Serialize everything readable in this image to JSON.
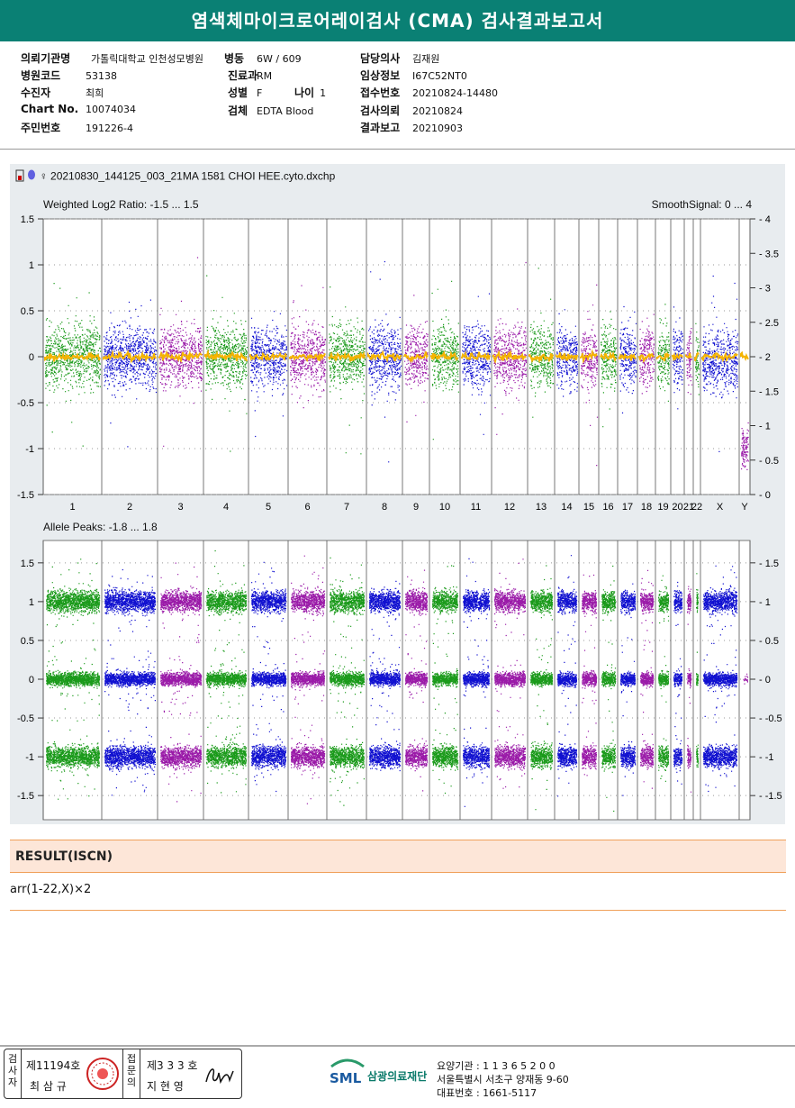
{
  "report": {
    "title": "염색체마이크로어레이검사 (CMA) 검사결과보고서"
  },
  "patient_info": {
    "col1": [
      {
        "label": "의뢰기관명",
        "value": "가톨릭대학교 인천성모병원"
      },
      {
        "label": "병원코드",
        "value": "53138"
      },
      {
        "label": "수진자",
        "value": "최희"
      },
      {
        "label": "Chart No.",
        "value": "10074034"
      },
      {
        "label": "주민번호",
        "value": "191226-4"
      }
    ],
    "col2": [
      {
        "label": "병동",
        "value": "6W / 609"
      },
      {
        "label": "진료과",
        "value": "RM"
      },
      {
        "label": "성별",
        "value": "F"
      },
      {
        "label": "검체",
        "value": "EDTA Blood"
      }
    ],
    "age": {
      "label": "나이",
      "value": "1"
    },
    "col3": [
      {
        "label": "담당의사",
        "value": "김재원"
      },
      {
        "label": "임상정보",
        "value": "I67C52NT0"
      },
      {
        "label": "접수번호",
        "value": "20210824-14480"
      },
      {
        "label": "검사의뢰",
        "value": "20210824"
      },
      {
        "label": "결과보고",
        "value": "20210903"
      }
    ]
  },
  "plot": {
    "filename": "20210830_144125_003_21MA 1581 CHOI HEE.cyto.dxchp",
    "sex_symbol": "♀",
    "top_title": "Weighted Log2 Ratio: -1.5 ... 1.5",
    "top_right_title": "SmoothSignal: 0 ... 4",
    "bottom_title": "Allele Peaks: -1.8 ... 1.8",
    "top_left_ticks": [
      "1.5",
      "1",
      "0.5",
      "0",
      "-0.5",
      "-1",
      "-1.5"
    ],
    "top_right_ticks": [
      "4",
      "3.5",
      "3",
      "2.5",
      "2",
      "1.5",
      "1",
      "0.5",
      "0"
    ],
    "bottom_ticks": [
      "1.5",
      "1",
      "0.5",
      "0",
      "-0.5",
      "-1",
      "-1.5"
    ],
    "chromosomes": [
      "1",
      "2",
      "3",
      "4",
      "5",
      "6",
      "7",
      "8",
      "9",
      "10",
      "11",
      "12",
      "13",
      "14",
      "15",
      "16",
      "17",
      "18",
      "19",
      "20",
      "21",
      "22",
      "X",
      "Y"
    ],
    "colors": {
      "green": "#1a9a1a",
      "blue": "#1010d0",
      "purple": "#9a1aa8",
      "orange": "#f5b400",
      "panel_bg": "#e8ecef"
    }
  },
  "result": {
    "header": "RESULT(ISCN)",
    "text": "arr(1-22,X)×2"
  },
  "footer": {
    "inspector_label": "검사자",
    "inspector_no": "제11194호",
    "inspector_name": "최 삼 규",
    "confirmer_label": "접문의",
    "confirmer_no": "제3 3 3 호",
    "confirmer_name": "지 현 영",
    "org_logo": "SML",
    "org_name": "삼광의료재단",
    "addr1": "요양기관 : 1 1 3 6 5 2 0 0",
    "addr2": "서울특별시 서초구 양재동 9-60",
    "addr3": "대표번호 : 1661-5117"
  }
}
